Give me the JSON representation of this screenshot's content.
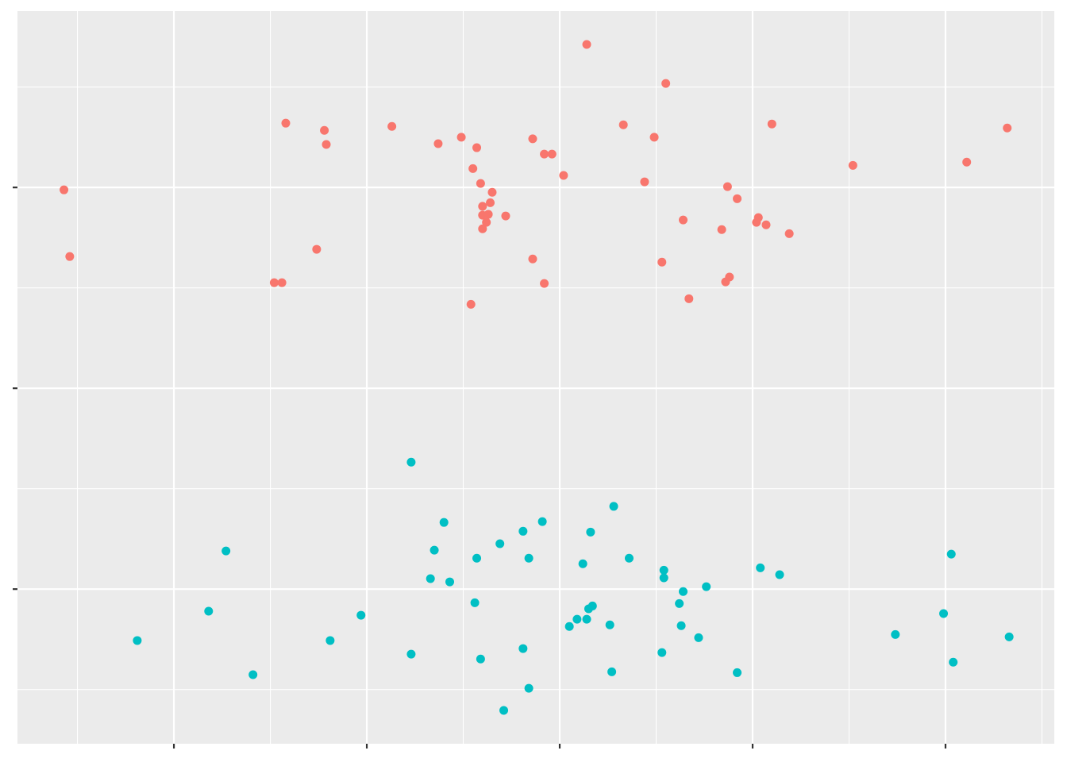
{
  "chart_data": {
    "type": "scatter",
    "title": "",
    "xlabel": "",
    "ylabel": "",
    "xlim": [
      0.189,
      5.564
    ],
    "ylim": [
      -0.385,
      1.439
    ],
    "x_ticks": [
      1,
      2,
      3,
      4,
      5
    ],
    "y_ticks": [
      0,
      0.5,
      1
    ],
    "tick_labels_shown": false,
    "grid": true,
    "legend": "none",
    "background": "#EBEBEB",
    "series": [
      {
        "color": "#F8766D",
        "points": [
          [
            3.14,
            1.356
          ],
          [
            3.55,
            1.259
          ],
          [
            1.58,
            1.16
          ],
          [
            1.78,
            1.142
          ],
          [
            1.79,
            1.107
          ],
          [
            2.13,
            1.152
          ],
          [
            2.37,
            1.109
          ],
          [
            2.49,
            1.125
          ],
          [
            2.57,
            1.099
          ],
          [
            2.86,
            1.121
          ],
          [
            2.92,
            1.083
          ],
          [
            2.96,
            1.083
          ],
          [
            3.33,
            1.156
          ],
          [
            3.49,
            1.125
          ],
          [
            4.1,
            1.158
          ],
          [
            5.32,
            1.148
          ],
          [
            5.11,
            1.063
          ],
          [
            4.52,
            1.055
          ],
          [
            2.55,
            1.047
          ],
          [
            2.59,
            1.01
          ],
          [
            3.02,
            1.03
          ],
          [
            3.44,
            1.014
          ],
          [
            3.87,
            1.002
          ],
          [
            0.43,
            0.994
          ],
          [
            2.65,
            0.988
          ],
          [
            3.92,
            0.972
          ],
          [
            2.6,
            0.953
          ],
          [
            2.64,
            0.962
          ],
          [
            2.6,
            0.931
          ],
          [
            2.63,
            0.933
          ],
          [
            2.62,
            0.913
          ],
          [
            2.6,
            0.897
          ],
          [
            2.72,
            0.929
          ],
          [
            3.64,
            0.919
          ],
          [
            4.03,
            0.925
          ],
          [
            4.02,
            0.913
          ],
          [
            4.07,
            0.907
          ],
          [
            3.84,
            0.895
          ],
          [
            4.19,
            0.885
          ],
          [
            0.46,
            0.828
          ],
          [
            1.74,
            0.846
          ],
          [
            2.86,
            0.822
          ],
          [
            3.53,
            0.814
          ],
          [
            1.52,
            0.763
          ],
          [
            1.56,
            0.763
          ],
          [
            2.92,
            0.761
          ],
          [
            3.88,
            0.777
          ],
          [
            3.86,
            0.765
          ],
          [
            3.67,
            0.723
          ],
          [
            2.54,
            0.709
          ]
        ]
      },
      {
        "color": "#00BFC4",
        "points": [
          [
            2.23,
            0.316
          ],
          [
            3.28,
            0.206
          ],
          [
            2.4,
            0.166
          ],
          [
            2.91,
            0.168
          ],
          [
            2.81,
            0.144
          ],
          [
            3.16,
            0.142
          ],
          [
            1.27,
            0.095
          ],
          [
            2.35,
            0.097
          ],
          [
            2.69,
            0.113
          ],
          [
            2.57,
            0.077
          ],
          [
            2.84,
            0.077
          ],
          [
            3.36,
            0.077
          ],
          [
            3.12,
            0.063
          ],
          [
            5.03,
            0.087
          ],
          [
            4.04,
            0.053
          ],
          [
            4.14,
            0.036
          ],
          [
            3.54,
            0.047
          ],
          [
            3.54,
            0.028
          ],
          [
            2.33,
            0.026
          ],
          [
            2.43,
            0.018
          ],
          [
            3.76,
            0.006
          ],
          [
            3.64,
            -0.006
          ],
          [
            2.56,
            -0.034
          ],
          [
            3.62,
            -0.036
          ],
          [
            3.17,
            -0.042
          ],
          [
            3.15,
            -0.049
          ],
          [
            1.18,
            -0.055
          ],
          [
            1.97,
            -0.065
          ],
          [
            4.99,
            -0.061
          ],
          [
            3.09,
            -0.075
          ],
          [
            3.14,
            -0.075
          ],
          [
            3.05,
            -0.093
          ],
          [
            3.26,
            -0.089
          ],
          [
            3.63,
            -0.091
          ],
          [
            4.74,
            -0.113
          ],
          [
            5.33,
            -0.119
          ],
          [
            3.72,
            -0.121
          ],
          [
            0.81,
            -0.128
          ],
          [
            1.81,
            -0.128
          ],
          [
            2.81,
            -0.148
          ],
          [
            2.23,
            -0.162
          ],
          [
            3.53,
            -0.158
          ],
          [
            2.59,
            -0.174
          ],
          [
            5.04,
            -0.182
          ],
          [
            1.41,
            -0.213
          ],
          [
            3.27,
            -0.206
          ],
          [
            3.92,
            -0.208
          ],
          [
            2.84,
            -0.247
          ],
          [
            2.71,
            -0.302
          ]
        ]
      }
    ]
  }
}
